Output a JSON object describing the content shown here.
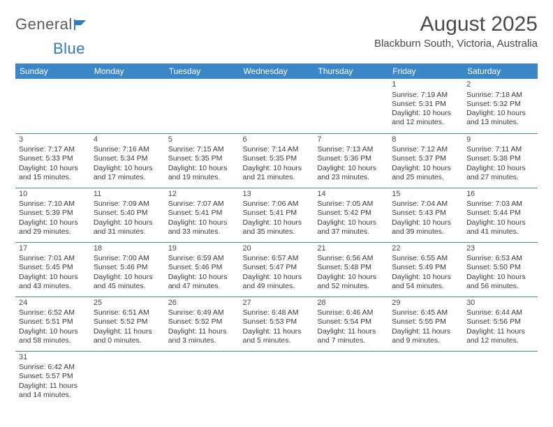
{
  "logo": {
    "text1": "General",
    "text2": "Blue"
  },
  "title": "August 2025",
  "location": "Blackburn South, Victoria, Australia",
  "colors": {
    "header_bg": "#3b87c8",
    "header_fg": "#ffffff",
    "border": "#3b87c8",
    "text": "#3a3a3a",
    "logo_blue": "#2f7bbf"
  },
  "weekdays": [
    "Sunday",
    "Monday",
    "Tuesday",
    "Wednesday",
    "Thursday",
    "Friday",
    "Saturday"
  ],
  "weeks": [
    [
      null,
      null,
      null,
      null,
      null,
      {
        "n": "1",
        "sr": "Sunrise: 7:19 AM",
        "ss": "Sunset: 5:31 PM",
        "dl": "Daylight: 10 hours and 12 minutes."
      },
      {
        "n": "2",
        "sr": "Sunrise: 7:18 AM",
        "ss": "Sunset: 5:32 PM",
        "dl": "Daylight: 10 hours and 13 minutes."
      }
    ],
    [
      {
        "n": "3",
        "sr": "Sunrise: 7:17 AM",
        "ss": "Sunset: 5:33 PM",
        "dl": "Daylight: 10 hours and 15 minutes."
      },
      {
        "n": "4",
        "sr": "Sunrise: 7:16 AM",
        "ss": "Sunset: 5:34 PM",
        "dl": "Daylight: 10 hours and 17 minutes."
      },
      {
        "n": "5",
        "sr": "Sunrise: 7:15 AM",
        "ss": "Sunset: 5:35 PM",
        "dl": "Daylight: 10 hours and 19 minutes."
      },
      {
        "n": "6",
        "sr": "Sunrise: 7:14 AM",
        "ss": "Sunset: 5:35 PM",
        "dl": "Daylight: 10 hours and 21 minutes."
      },
      {
        "n": "7",
        "sr": "Sunrise: 7:13 AM",
        "ss": "Sunset: 5:36 PM",
        "dl": "Daylight: 10 hours and 23 minutes."
      },
      {
        "n": "8",
        "sr": "Sunrise: 7:12 AM",
        "ss": "Sunset: 5:37 PM",
        "dl": "Daylight: 10 hours and 25 minutes."
      },
      {
        "n": "9",
        "sr": "Sunrise: 7:11 AM",
        "ss": "Sunset: 5:38 PM",
        "dl": "Daylight: 10 hours and 27 minutes."
      }
    ],
    [
      {
        "n": "10",
        "sr": "Sunrise: 7:10 AM",
        "ss": "Sunset: 5:39 PM",
        "dl": "Daylight: 10 hours and 29 minutes."
      },
      {
        "n": "11",
        "sr": "Sunrise: 7:09 AM",
        "ss": "Sunset: 5:40 PM",
        "dl": "Daylight: 10 hours and 31 minutes."
      },
      {
        "n": "12",
        "sr": "Sunrise: 7:07 AM",
        "ss": "Sunset: 5:41 PM",
        "dl": "Daylight: 10 hours and 33 minutes."
      },
      {
        "n": "13",
        "sr": "Sunrise: 7:06 AM",
        "ss": "Sunset: 5:41 PM",
        "dl": "Daylight: 10 hours and 35 minutes."
      },
      {
        "n": "14",
        "sr": "Sunrise: 7:05 AM",
        "ss": "Sunset: 5:42 PM",
        "dl": "Daylight: 10 hours and 37 minutes."
      },
      {
        "n": "15",
        "sr": "Sunrise: 7:04 AM",
        "ss": "Sunset: 5:43 PM",
        "dl": "Daylight: 10 hours and 39 minutes."
      },
      {
        "n": "16",
        "sr": "Sunrise: 7:03 AM",
        "ss": "Sunset: 5:44 PM",
        "dl": "Daylight: 10 hours and 41 minutes."
      }
    ],
    [
      {
        "n": "17",
        "sr": "Sunrise: 7:01 AM",
        "ss": "Sunset: 5:45 PM",
        "dl": "Daylight: 10 hours and 43 minutes."
      },
      {
        "n": "18",
        "sr": "Sunrise: 7:00 AM",
        "ss": "Sunset: 5:46 PM",
        "dl": "Daylight: 10 hours and 45 minutes."
      },
      {
        "n": "19",
        "sr": "Sunrise: 6:59 AM",
        "ss": "Sunset: 5:46 PM",
        "dl": "Daylight: 10 hours and 47 minutes."
      },
      {
        "n": "20",
        "sr": "Sunrise: 6:57 AM",
        "ss": "Sunset: 5:47 PM",
        "dl": "Daylight: 10 hours and 49 minutes."
      },
      {
        "n": "21",
        "sr": "Sunrise: 6:56 AM",
        "ss": "Sunset: 5:48 PM",
        "dl": "Daylight: 10 hours and 52 minutes."
      },
      {
        "n": "22",
        "sr": "Sunrise: 6:55 AM",
        "ss": "Sunset: 5:49 PM",
        "dl": "Daylight: 10 hours and 54 minutes."
      },
      {
        "n": "23",
        "sr": "Sunrise: 6:53 AM",
        "ss": "Sunset: 5:50 PM",
        "dl": "Daylight: 10 hours and 56 minutes."
      }
    ],
    [
      {
        "n": "24",
        "sr": "Sunrise: 6:52 AM",
        "ss": "Sunset: 5:51 PM",
        "dl": "Daylight: 10 hours and 58 minutes."
      },
      {
        "n": "25",
        "sr": "Sunrise: 6:51 AM",
        "ss": "Sunset: 5:52 PM",
        "dl": "Daylight: 11 hours and 0 minutes."
      },
      {
        "n": "26",
        "sr": "Sunrise: 6:49 AM",
        "ss": "Sunset: 5:52 PM",
        "dl": "Daylight: 11 hours and 3 minutes."
      },
      {
        "n": "27",
        "sr": "Sunrise: 6:48 AM",
        "ss": "Sunset: 5:53 PM",
        "dl": "Daylight: 11 hours and 5 minutes."
      },
      {
        "n": "28",
        "sr": "Sunrise: 6:46 AM",
        "ss": "Sunset: 5:54 PM",
        "dl": "Daylight: 11 hours and 7 minutes."
      },
      {
        "n": "29",
        "sr": "Sunrise: 6:45 AM",
        "ss": "Sunset: 5:55 PM",
        "dl": "Daylight: 11 hours and 9 minutes."
      },
      {
        "n": "30",
        "sr": "Sunrise: 6:44 AM",
        "ss": "Sunset: 5:56 PM",
        "dl": "Daylight: 11 hours and 12 minutes."
      }
    ],
    [
      {
        "n": "31",
        "sr": "Sunrise: 6:42 AM",
        "ss": "Sunset: 5:57 PM",
        "dl": "Daylight: 11 hours and 14 minutes."
      },
      null,
      null,
      null,
      null,
      null,
      null
    ]
  ]
}
